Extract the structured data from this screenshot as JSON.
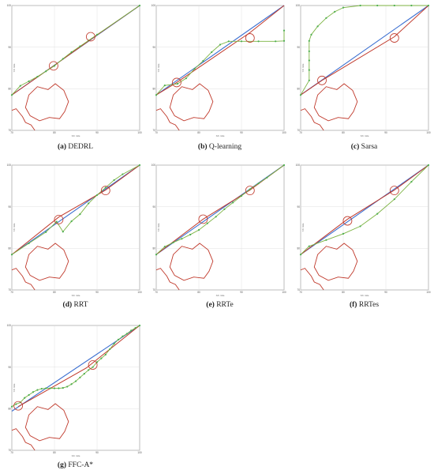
{
  "chart_data": [
    {
      "type": "line",
      "letter": "(a)",
      "name": "DEDRL",
      "xlim": [
        70,
        100
      ],
      "ylim": [
        70,
        100
      ],
      "xticks": [
        "70",
        "80",
        "90",
        "100"
      ],
      "yticks": [
        "70",
        "80",
        "90",
        "100"
      ],
      "xlabel": "X/n mile",
      "ylabel": "Y/n mile",
      "obstacle_outline": [
        [
          74,
          78.5
        ],
        [
          76,
          80.5
        ],
        [
          78.5,
          79.8
        ],
        [
          80.2,
          81.2
        ],
        [
          82.2,
          79.6
        ],
        [
          83.3,
          76.9
        ],
        [
          82.4,
          74.5
        ],
        [
          81.2,
          72.8
        ],
        [
          78.8,
          73.1
        ],
        [
          76.5,
          72.3
        ],
        [
          74.3,
          73.5
        ],
        [
          73.2,
          75.5
        ]
      ],
      "obstacle_edge": [
        [
          70,
          74.8
        ],
        [
          71,
          75.2
        ],
        [
          72.5,
          73.3
        ],
        [
          73.2,
          71.9
        ],
        [
          74.5,
          71.3
        ],
        [
          75.4,
          70
        ]
      ],
      "baseline": [
        [
          70,
          78.5
        ],
        [
          100,
          100
        ]
      ],
      "reference_path": [
        [
          70,
          78.5
        ],
        [
          79.8,
          85.5
        ],
        [
          89,
          92.2
        ],
        [
          100,
          100
        ]
      ],
      "path": [
        [
          70,
          78.5
        ],
        [
          72,
          80.7
        ],
        [
          74,
          81.8
        ],
        [
          76,
          82.9
        ],
        [
          78,
          84.2
        ],
        [
          80,
          85.5
        ],
        [
          82,
          87.2
        ],
        [
          84,
          88.8
        ],
        [
          86,
          90.2
        ],
        [
          88,
          91.6
        ],
        [
          90,
          93
        ],
        [
          100,
          100
        ]
      ],
      "circles": [
        [
          79.8,
          85.5
        ],
        [
          88.5,
          92.5
        ]
      ]
    },
    {
      "type": "line",
      "letter": "(b)",
      "name": "Q-learning",
      "xlim": [
        70,
        100
      ],
      "ylim": [
        70,
        100
      ],
      "xticks": [
        "70",
        "80",
        "90",
        "100"
      ],
      "yticks": [
        "70",
        "80",
        "90",
        "100"
      ],
      "xlabel": "X/n mile",
      "ylabel": "Y/n mile",
      "obstacle_outline": [
        [
          74,
          78.5
        ],
        [
          76,
          80.5
        ],
        [
          78.5,
          79.8
        ],
        [
          80.2,
          81.2
        ],
        [
          82.2,
          79.6
        ],
        [
          83.3,
          76.9
        ],
        [
          82.4,
          74.5
        ],
        [
          81.2,
          72.8
        ],
        [
          78.8,
          73.1
        ],
        [
          76.5,
          72.3
        ],
        [
          74.3,
          73.5
        ],
        [
          73.2,
          75.5
        ]
      ],
      "obstacle_edge": [
        [
          70,
          74.8
        ],
        [
          71,
          75.2
        ],
        [
          72.5,
          73.3
        ],
        [
          73.2,
          71.9
        ],
        [
          74.5,
          71.3
        ],
        [
          75.4,
          70
        ]
      ],
      "baseline": [
        [
          70,
          78.5
        ],
        [
          100,
          100
        ]
      ],
      "reference_path": [
        [
          70,
          78.5
        ],
        [
          74.8,
          81.5
        ],
        [
          92,
          93.5
        ],
        [
          100,
          100
        ]
      ],
      "path": [
        [
          70,
          78.5
        ],
        [
          72,
          80.8
        ],
        [
          75,
          81.2
        ],
        [
          77,
          82.5
        ],
        [
          79,
          84.8
        ],
        [
          81,
          86.7
        ],
        [
          83,
          88.8
        ],
        [
          85,
          90.6
        ],
        [
          87,
          91.4
        ],
        [
          90,
          91.4
        ],
        [
          94,
          91.4
        ],
        [
          98,
          91.4
        ],
        [
          100,
          91.5
        ],
        [
          100,
          94
        ]
      ],
      "circles": [
        [
          74.8,
          81.5
        ],
        [
          92,
          92.2
        ]
      ]
    },
    {
      "type": "line",
      "letter": "(c)",
      "name": "Sarsa",
      "xlim": [
        70,
        100
      ],
      "ylim": [
        70,
        100
      ],
      "xticks": [
        "70",
        "80",
        "90",
        "100"
      ],
      "yticks": [
        "70",
        "80",
        "90",
        "100"
      ],
      "xlabel": "X/n mile",
      "ylabel": "Y/n mile",
      "obstacle_outline": [
        [
          74,
          78.5
        ],
        [
          76,
          80.5
        ],
        [
          78.5,
          79.8
        ],
        [
          80.2,
          81.2
        ],
        [
          82.2,
          79.6
        ],
        [
          83.3,
          76.9
        ],
        [
          82.4,
          74.5
        ],
        [
          81.2,
          72.8
        ],
        [
          78.8,
          73.1
        ],
        [
          76.5,
          72.3
        ],
        [
          74.3,
          73.5
        ],
        [
          73.2,
          75.5
        ]
      ],
      "obstacle_edge": [
        [
          70,
          74.8
        ],
        [
          71,
          75.2
        ],
        [
          72.5,
          73.3
        ],
        [
          73.2,
          71.9
        ],
        [
          74.5,
          71.3
        ],
        [
          75.4,
          70
        ]
      ],
      "baseline": [
        [
          70,
          78.5
        ],
        [
          100,
          100
        ]
      ],
      "reference_path": [
        [
          70,
          78.5
        ],
        [
          75,
          82
        ],
        [
          92,
          92.5
        ],
        [
          100,
          100
        ]
      ],
      "path": [
        [
          70,
          78.5
        ],
        [
          72,
          82
        ],
        [
          72,
          84.5
        ],
        [
          72,
          86.8
        ],
        [
          72,
          89
        ],
        [
          72,
          91.5
        ],
        [
          72.5,
          93
        ],
        [
          74,
          95
        ],
        [
          76,
          97
        ],
        [
          78,
          98.5
        ],
        [
          80,
          99.5
        ],
        [
          84,
          100
        ],
        [
          88,
          100
        ],
        [
          92,
          100
        ],
        [
          96,
          100
        ],
        [
          100,
          100
        ]
      ],
      "circles": [
        [
          75,
          82
        ],
        [
          92,
          92.2
        ]
      ]
    },
    {
      "type": "line",
      "letter": "(d)",
      "name": "RRT",
      "xlim": [
        70,
        100
      ],
      "ylim": [
        70,
        100
      ],
      "xticks": [
        "70",
        "80",
        "90",
        "100"
      ],
      "yticks": [
        "70",
        "80",
        "90",
        "100"
      ],
      "xlabel": "X/n mile",
      "ylabel": "Y/n mile",
      "obstacle_outline": [
        [
          74,
          78.5
        ],
        [
          76,
          80.5
        ],
        [
          78.5,
          79.8
        ],
        [
          80.2,
          81.2
        ],
        [
          82.2,
          79.6
        ],
        [
          83.3,
          76.9
        ],
        [
          82.4,
          74.5
        ],
        [
          81.2,
          72.8
        ],
        [
          78.8,
          73.1
        ],
        [
          76.5,
          72.3
        ],
        [
          74.3,
          73.5
        ],
        [
          73.2,
          75.5
        ]
      ],
      "obstacle_edge": [
        [
          70,
          74.8
        ],
        [
          71,
          75.2
        ],
        [
          72.5,
          73.3
        ],
        [
          73.2,
          71.9
        ],
        [
          74.5,
          71.3
        ],
        [
          75.4,
          70
        ]
      ],
      "baseline": [
        [
          70,
          78.5
        ],
        [
          100,
          100
        ]
      ],
      "reference_path": [
        [
          70,
          78.5
        ],
        [
          81,
          87.5
        ],
        [
          92,
          94
        ],
        [
          100,
          100
        ]
      ],
      "path": [
        [
          70,
          78.5
        ],
        [
          74,
          81.2
        ],
        [
          78,
          83.9
        ],
        [
          80.5,
          86.4
        ],
        [
          82,
          84
        ],
        [
          84,
          86.5
        ],
        [
          86,
          88.2
        ],
        [
          88,
          90.8
        ],
        [
          90,
          92.8
        ],
        [
          92,
          94.6
        ],
        [
          94,
          96.4
        ],
        [
          96,
          97.8
        ],
        [
          100,
          100
        ]
      ],
      "circles": [
        [
          81,
          86.9
        ],
        [
          92,
          93.9
        ]
      ]
    },
    {
      "type": "line",
      "letter": "(e)",
      "name": "RRTe",
      "xlim": [
        70,
        100
      ],
      "ylim": [
        70,
        100
      ],
      "xticks": [
        "70",
        "80",
        "90",
        "100"
      ],
      "yticks": [
        "70",
        "80",
        "90",
        "100"
      ],
      "xlabel": "X/n mile",
      "ylabel": "Y/n mile",
      "obstacle_outline": [
        [
          74,
          78.5
        ],
        [
          76,
          80.5
        ],
        [
          78.5,
          79.8
        ],
        [
          80.2,
          81.2
        ],
        [
          82.2,
          79.6
        ],
        [
          83.3,
          76.9
        ],
        [
          82.4,
          74.5
        ],
        [
          81.2,
          72.8
        ],
        [
          78.8,
          73.1
        ],
        [
          76.5,
          72.3
        ],
        [
          74.3,
          73.5
        ],
        [
          73.2,
          75.5
        ]
      ],
      "obstacle_edge": [
        [
          70,
          74.8
        ],
        [
          71,
          75.2
        ],
        [
          72.5,
          73.3
        ],
        [
          73.2,
          71.9
        ],
        [
          74.5,
          71.3
        ],
        [
          75.4,
          70
        ]
      ],
      "baseline": [
        [
          70,
          78.5
        ],
        [
          100,
          100
        ]
      ],
      "reference_path": [
        [
          70,
          78.5
        ],
        [
          81,
          87
        ],
        [
          92,
          94
        ],
        [
          100,
          100
        ]
      ],
      "path": [
        [
          70,
          78.5
        ],
        [
          72,
          80.4
        ],
        [
          74,
          81.4
        ],
        [
          76,
          82.3
        ],
        [
          78,
          83.3
        ],
        [
          80,
          84.4
        ],
        [
          82,
          86
        ],
        [
          84,
          87.6
        ],
        [
          86,
          89.4
        ],
        [
          88,
          91
        ],
        [
          90,
          92.6
        ],
        [
          92,
          94.2
        ],
        [
          94,
          95.6
        ],
        [
          96,
          97
        ],
        [
          100,
          100
        ]
      ],
      "circles": [
        [
          81,
          87
        ],
        [
          92,
          93.9
        ]
      ]
    },
    {
      "type": "line",
      "letter": "(f)",
      "name": "RRTes",
      "xlim": [
        70,
        100
      ],
      "ylim": [
        70,
        100
      ],
      "xticks": [
        "70",
        "80",
        "90",
        "100"
      ],
      "yticks": [
        "70",
        "80",
        "90",
        "100"
      ],
      "xlabel": "X/n mile",
      "ylabel": "Y/n mile",
      "obstacle_outline": [
        [
          74,
          78.5
        ],
        [
          76,
          80.5
        ],
        [
          78.5,
          79.8
        ],
        [
          80.2,
          81.2
        ],
        [
          82.2,
          79.6
        ],
        [
          83.3,
          76.9
        ],
        [
          82.4,
          74.5
        ],
        [
          81.2,
          72.8
        ],
        [
          78.8,
          73.1
        ],
        [
          76.5,
          72.3
        ],
        [
          74.3,
          73.5
        ],
        [
          73.2,
          75.5
        ]
      ],
      "obstacle_edge": [
        [
          70,
          74.8
        ],
        [
          71,
          75.2
        ],
        [
          72.5,
          73.3
        ],
        [
          73.2,
          71.9
        ],
        [
          74.5,
          71.3
        ],
        [
          75.4,
          70
        ]
      ],
      "baseline": [
        [
          70,
          78.5
        ],
        [
          100,
          100
        ]
      ],
      "reference_path": [
        [
          70,
          78.5
        ],
        [
          81,
          87
        ],
        [
          92,
          94
        ],
        [
          100,
          100
        ]
      ],
      "path": [
        [
          70,
          78.5
        ],
        [
          72,
          80.5
        ],
        [
          76,
          82
        ],
        [
          80,
          83.5
        ],
        [
          84,
          85.3
        ],
        [
          88,
          88.3
        ],
        [
          92,
          91.8
        ],
        [
          96,
          96
        ],
        [
          100,
          100
        ]
      ],
      "circles": [
        [
          81,
          86.6
        ],
        [
          92,
          93.9
        ]
      ]
    },
    {
      "type": "line",
      "letter": "(g)",
      "name": "FFC-A*",
      "xlim": [
        70,
        100
      ],
      "ylim": [
        70,
        100
      ],
      "xticks": [
        "70",
        "80",
        "90",
        "100"
      ],
      "yticks": [
        "70",
        "80",
        "90",
        "100"
      ],
      "xlabel": "X/n mile",
      "ylabel": "Y/n mile",
      "obstacle_outline": [
        [
          74,
          78.5
        ],
        [
          76,
          80.5
        ],
        [
          78.5,
          79.8
        ],
        [
          80.2,
          81.2
        ],
        [
          82.2,
          79.6
        ],
        [
          83.3,
          76.9
        ],
        [
          82.4,
          74.5
        ],
        [
          81.2,
          72.8
        ],
        [
          78.8,
          73.1
        ],
        [
          76.5,
          72.3
        ],
        [
          74.3,
          73.5
        ],
        [
          73.2,
          75.5
        ]
      ],
      "obstacle_edge": [
        [
          70,
          74.8
        ],
        [
          71,
          75.2
        ],
        [
          72.5,
          73.3
        ],
        [
          73.2,
          71.9
        ],
        [
          74.5,
          71.3
        ],
        [
          75.4,
          70
        ]
      ],
      "baseline": [
        [
          70,
          79.4
        ],
        [
          100,
          100
        ]
      ],
      "reference_path": [
        [
          71.5,
          80.5
        ],
        [
          87.5,
          89.8
        ],
        [
          100,
          100
        ]
      ],
      "path": [
        [
          70,
          80.5
        ],
        [
          71,
          81.1
        ],
        [
          72,
          81.5
        ],
        [
          73,
          82.6
        ],
        [
          74,
          83.3
        ],
        [
          75,
          84
        ],
        [
          76,
          84.5
        ],
        [
          77,
          84.8
        ],
        [
          78,
          84.9
        ],
        [
          79,
          84.9
        ],
        [
          80,
          84.9
        ],
        [
          81,
          84.9
        ],
        [
          82,
          85
        ],
        [
          83,
          85.3
        ],
        [
          84,
          85.9
        ],
        [
          85,
          86.6
        ],
        [
          86,
          87.5
        ],
        [
          87,
          88.4
        ],
        [
          88,
          89.3
        ],
        [
          89,
          90
        ],
        [
          90,
          91.2
        ],
        [
          91,
          92.1
        ],
        [
          92,
          93
        ],
        [
          93,
          94.3
        ],
        [
          94,
          95.6
        ],
        [
          95,
          96.6
        ],
        [
          96,
          97.4
        ],
        [
          97,
          98
        ],
        [
          98,
          98.8
        ],
        [
          99,
          99.4
        ],
        [
          100,
          100
        ]
      ],
      "circles": [
        [
          71.5,
          80.7
        ],
        [
          89,
          90.5
        ]
      ]
    }
  ]
}
